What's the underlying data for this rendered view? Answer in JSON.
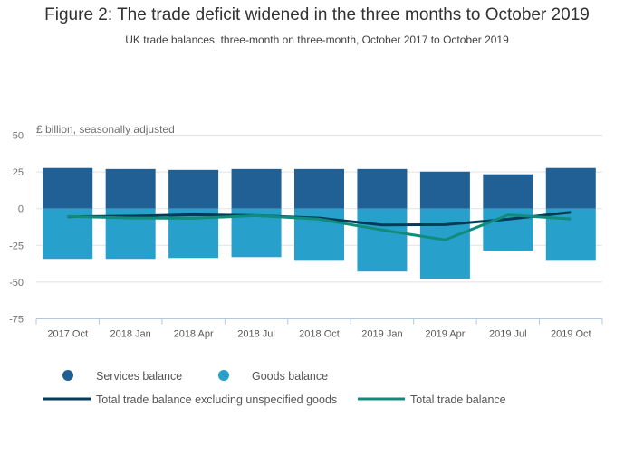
{
  "chart_data": {
    "type": "bar",
    "title": "Figure 2: The trade deficit widened in the three months to October 2019",
    "subtitle": "UK trade balances, three-month on three-month, October 2017 to October 2019",
    "ylabel": "£ billion, seasonally adjusted",
    "xlabel": "",
    "ylim": [
      -75,
      50
    ],
    "yticks": [
      50,
      25,
      0,
      -25,
      -50,
      -75
    ],
    "grid": true,
    "legend_placement": "bottom",
    "categories": [
      "2017 Oct",
      "2018 Jan",
      "2018 Apr",
      "2018 Jul",
      "2018 Oct",
      "2019 Jan",
      "2019 Apr",
      "2019 Jul",
      "2019 Oct"
    ],
    "series": [
      {
        "name": "Services balance",
        "kind": "bar",
        "color": "#206095",
        "values": [
          27.7,
          27.0,
          26.4,
          27.0,
          27.0,
          27.0,
          25.2,
          23.4,
          27.7
        ]
      },
      {
        "name": "Goods balance",
        "kind": "bar",
        "color": "#27a0cc",
        "values": [
          -34.2,
          -34.2,
          -33.6,
          -33.0,
          -35.5,
          -42.8,
          -47.7,
          -28.7,
          -35.5
        ]
      },
      {
        "name": "Total trade balance excluding unspecified goods",
        "kind": "line",
        "color": "#003c57",
        "values": [
          -5.5,
          -5.1,
          -4.1,
          -4.7,
          -6.4,
          -11.1,
          -10.9,
          -7.2,
          -2.5
        ]
      },
      {
        "name": "Total trade balance",
        "kind": "line",
        "color": "#118c7b",
        "values": [
          -5.3,
          -6.4,
          -6.6,
          -4.7,
          -7.2,
          -14.5,
          -21.3,
          -4.3,
          -7.0
        ]
      }
    ]
  }
}
